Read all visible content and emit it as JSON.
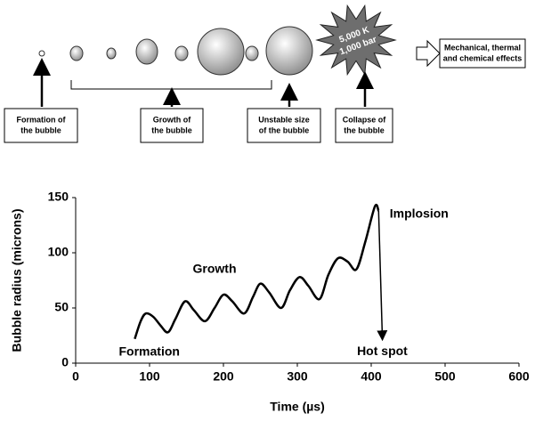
{
  "diagram": {
    "stages": [
      {
        "lines": [
          "Formation of",
          "the bubble"
        ]
      },
      {
        "lines": [
          "Growth of",
          "the bubble"
        ]
      },
      {
        "lines": [
          "Unstable size",
          "of the bubble"
        ]
      },
      {
        "lines": [
          "Collapse of",
          "the bubble"
        ]
      }
    ],
    "starburst": [
      "5,000 K",
      "1,000 bar"
    ],
    "effects": [
      "Mechanical, thermal",
      "and chemical effects"
    ]
  },
  "chart_data": {
    "type": "line",
    "x_label": "Time (µs)",
    "y_label": "Bubble radius (microns)",
    "xlim": [
      0,
      600
    ],
    "xticks": [
      0,
      100,
      200,
      300,
      400,
      500,
      600
    ],
    "ylim": [
      0,
      150
    ],
    "yticks": [
      0,
      50,
      100,
      150
    ],
    "series": [
      {
        "color": "#000000",
        "x": [
          80,
          88,
          95,
          105,
          115,
          125,
          135,
          148,
          160,
          175,
          188,
          200,
          212,
          228,
          240,
          250,
          262,
          278,
          290,
          303,
          315,
          330,
          342,
          355,
          368,
          380,
          392,
          405,
          410
        ],
        "values": [
          22,
          38,
          45,
          42,
          34,
          28,
          40,
          56,
          48,
          38,
          50,
          62,
          56,
          45,
          60,
          72,
          64,
          50,
          66,
          78,
          70,
          58,
          80,
          95,
          92,
          85,
          110,
          142,
          138
        ]
      }
    ],
    "annotations": [
      {
        "text": "Formation",
        "x": 78,
        "y": 10
      },
      {
        "text": "Growth",
        "x": 188,
        "y": 85
      },
      {
        "text": "Implosion",
        "x": 425,
        "y": 135
      },
      {
        "text": "Hot spot",
        "x": 415,
        "y": 20
      }
    ]
  }
}
